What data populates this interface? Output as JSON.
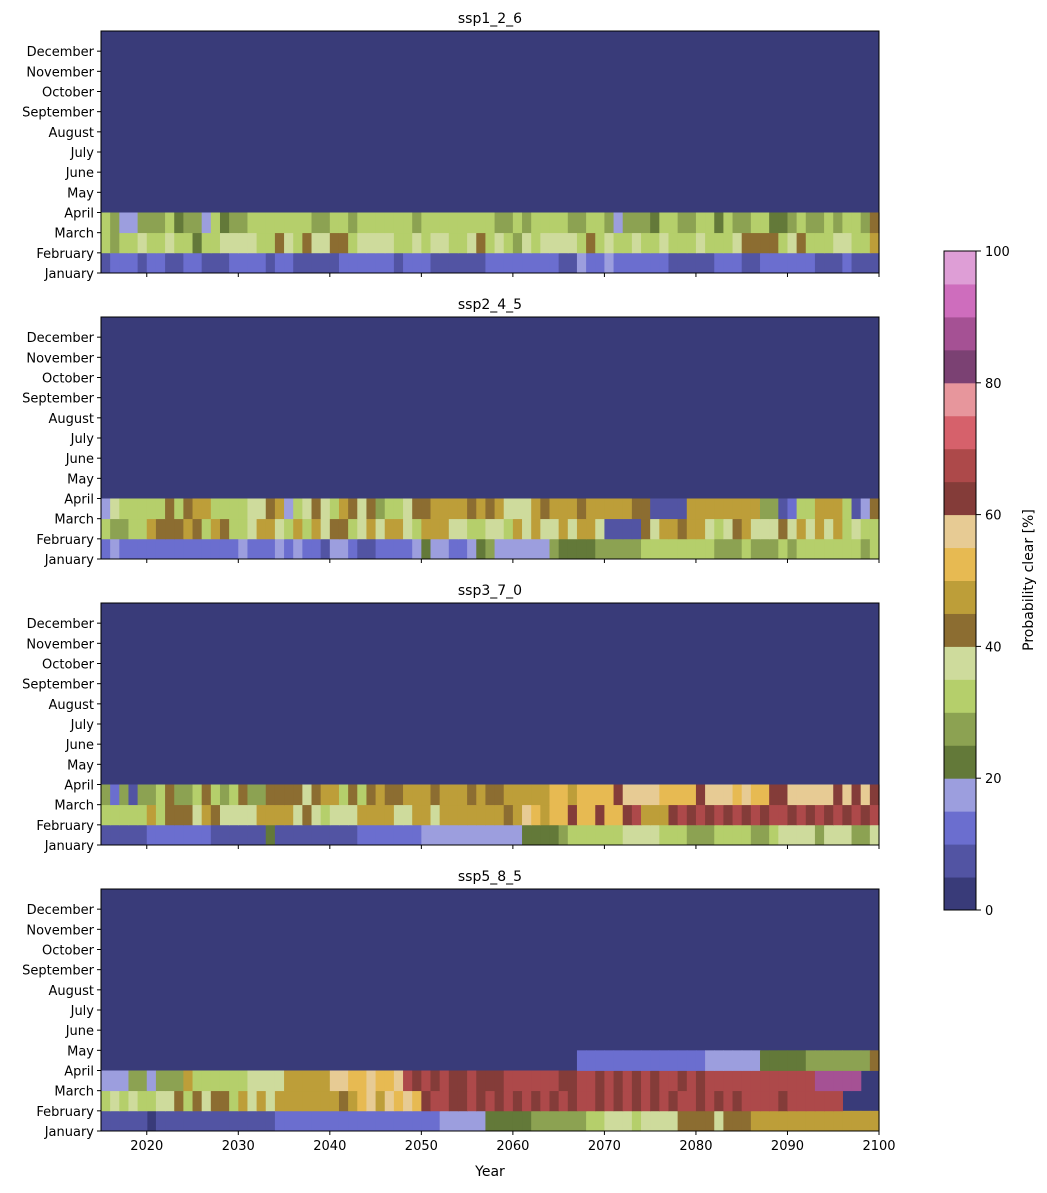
{
  "figure": {
    "xlabel": "Year",
    "colorbar_label": "Probability clear [%]",
    "colorbar_ticks": [
      "0",
      "20",
      "40",
      "60",
      "80",
      "100"
    ]
  },
  "chart_data": {
    "type": "heatmap",
    "x_range": [
      2015,
      2100
    ],
    "x_ticks": [
      2020,
      2030,
      2040,
      2050,
      2060,
      2070,
      2080,
      2090,
      2100
    ],
    "x_tick_labels": [
      "2020",
      "2030",
      "2040",
      "2050",
      "2060",
      "2070",
      "2080",
      "2090",
      "2100"
    ],
    "months": [
      "January",
      "February",
      "March",
      "April",
      "May",
      "June",
      "July",
      "August",
      "September",
      "October",
      "November",
      "December"
    ],
    "value_range": [
      0,
      100
    ],
    "bin_width": 5,
    "colormap": [
      "#393b79",
      "#5254a3",
      "#6b6ecf",
      "#9c9ede",
      "#637939",
      "#8ca252",
      "#b5cf6b",
      "#cedb9c",
      "#8c6d31",
      "#bd9e39",
      "#e7ba52",
      "#e7cb94",
      "#843c39",
      "#ad494a",
      "#d6616b",
      "#e7969c",
      "#7b4173",
      "#a55194",
      "#ce6dbd",
      "#de9ed6"
    ],
    "panels": [
      {
        "title": "ssp1_2_6",
        "month_bins": {
          "January": "1222122112211122221221111122222212221111112222222211322322222211111222112222221112111",
          "February": "6566766766466777766876877886777766767766786765767777686766766766676667888867866677669",
          "March": "6533555645536455666666655665666666566666666556566665566535554665566465566445655656658",
          "April": "0000000000000000000000000000000000000000000000000000000000000000000000000000000000000",
          "May": "0000000000000000000000000000000000000000000000000000000000000000000000000000000000000",
          "June": "0000000000000000000000000000000000000000000000000000000000000000000000000000000000000",
          "July": "0000000000000000000000000000000000000000000000000000000000000000000000000000000000000",
          "August": "0000000000000000000000000000000000000000000000000000000000000000000000000000000000000",
          "September": "0000000000000000000000000000000000000000000000000000000000000000000000000000000000000",
          "October": "0000000000000000000000000000000000000000000000000000000000000000000000000000000000000",
          "November": "0000000000000000000000000000000000000000000000000000000000000000000000000000000000000",
          "December": "0000000000000000000000000000000000000000000000000000000000000000000000000000000000000"
        }
      },
      {
        "title": "ssp2_4_5",
        "month_bins": {
          "January": "2322222222222223222323221332112222343322345333333544445555566666666555655565666666656",
          "February": "6556698889869866799769697886797997699977667769797797997111187998997678977787979796766",
          "March": "3766666868996666778936787698785667889999898977798999899999881111999999995512669996138",
          "April": "0000000000000000000000000000000000000000000000000000000000000000000000000000000000000",
          "May": "0000000000000000000000000000000000000000000000000000000000000000000000000000000000000",
          "June": "0000000000000000000000000000000000000000000000000000000000000000000000000000000000000",
          "July": "0000000000000000000000000000000000000000000000000000000000000000000000000000000000000",
          "August": "0000000000000000000000000000000000000000000000000000000000000000000000000000000000000",
          "September": "0000000000000000000000000000000000000000000000000000000000000000000000000000000000000",
          "October": "0000000000000000000000000000000000000000000000000000000000000000000000000000000000000",
          "November": "0000000000000000000000000000000000000000000000000000000000000000000000000000000000000",
          "December": "0000000000000000000000000000000000000000000000000000000000000000000000000000000000000"
        }
      },
      {
        "title": "ssp3_7_0",
        "month_bins": {
          "January": "1111122222221111114111111111222222233333333333444456666667777666555666655677775777557",
          "February": "6666696888798777799997876777999977997999999989ba9aacaacaacd999cdcdcdcdcdcddcdcdcdcdcdcd",
          "March": "5251556855686568558888789968689889998999898899999aa9aaaacbbbbaaaacbbbabaaccbbbbbcbcbc9",
          "April": "0000000000000000000000000000000000000000000000000000000000000000000000000000000000000",
          "May": "0000000000000000000000000000000000000000000000000000000000000000000000000000000000000",
          "June": "0000000000000000000000000000000000000000000000000000000000000000000000000000000000000",
          "July": "0000000000000000000000000000000000000000000000000000000000000000000000000000000000000",
          "August": "0000000000000000000000000000000000000000000000000000000000000000000000000000000000000",
          "September": "0000000000000000000000000000000000000000000000000000000000000000000000000000000000000",
          "October": "0000000000000000000000000000000000000000000000000000000000000000000000000000000000000",
          "November": "0000000000000000000000000000000000000000000000000000000000000000000000000000000000000",
          "December": "0000000000000000000000000000000000000000000000000000000000000000000000000000000000000"
        }
      },
      {
        "title": "ssp5_8_5",
        "month_bins": {
          "January": "1111101111111111111222222222222222222333334444455555566777677778888788899999999999999",
          "February": "6767667786878869797999999989ab9babacddccdcdcdcdcdcdcddcdcdcdcdcddcdcdcddddcdddddd",
          "March": "3335535559666666777799999bbaabaabdcdcdccdcccddddddccddcdcdcdcddcdcddddddddddddhhhhh",
          "April": "0000000000000000000000000000000000000000000000000000222222222222223333334444455555558",
          "May": "0000000000000000000000000000000000000000000000000000000000000000000000000000000000000",
          "June": "0000000000000000000000000000000000000000000000000000000000000000000000000000000000000",
          "July": "0000000000000000000000000000000000000000000000000000000000000000000000000000000000000",
          "August": "0000000000000000000000000000000000000000000000000000000000000000000000000000000000000",
          "September": "0000000000000000000000000000000000000000000000000000000000000000000000000000000000000",
          "October": "0000000000000000000000000000000000000000000000000000000000000000000000000000000000000",
          "November": "0000000000000000000000000000000000000000000000000000000000000000000000000000000000000",
          "December": "0000000000000000000000000000000000000000000000000000000000000000000000000000000000000"
        }
      }
    ]
  }
}
